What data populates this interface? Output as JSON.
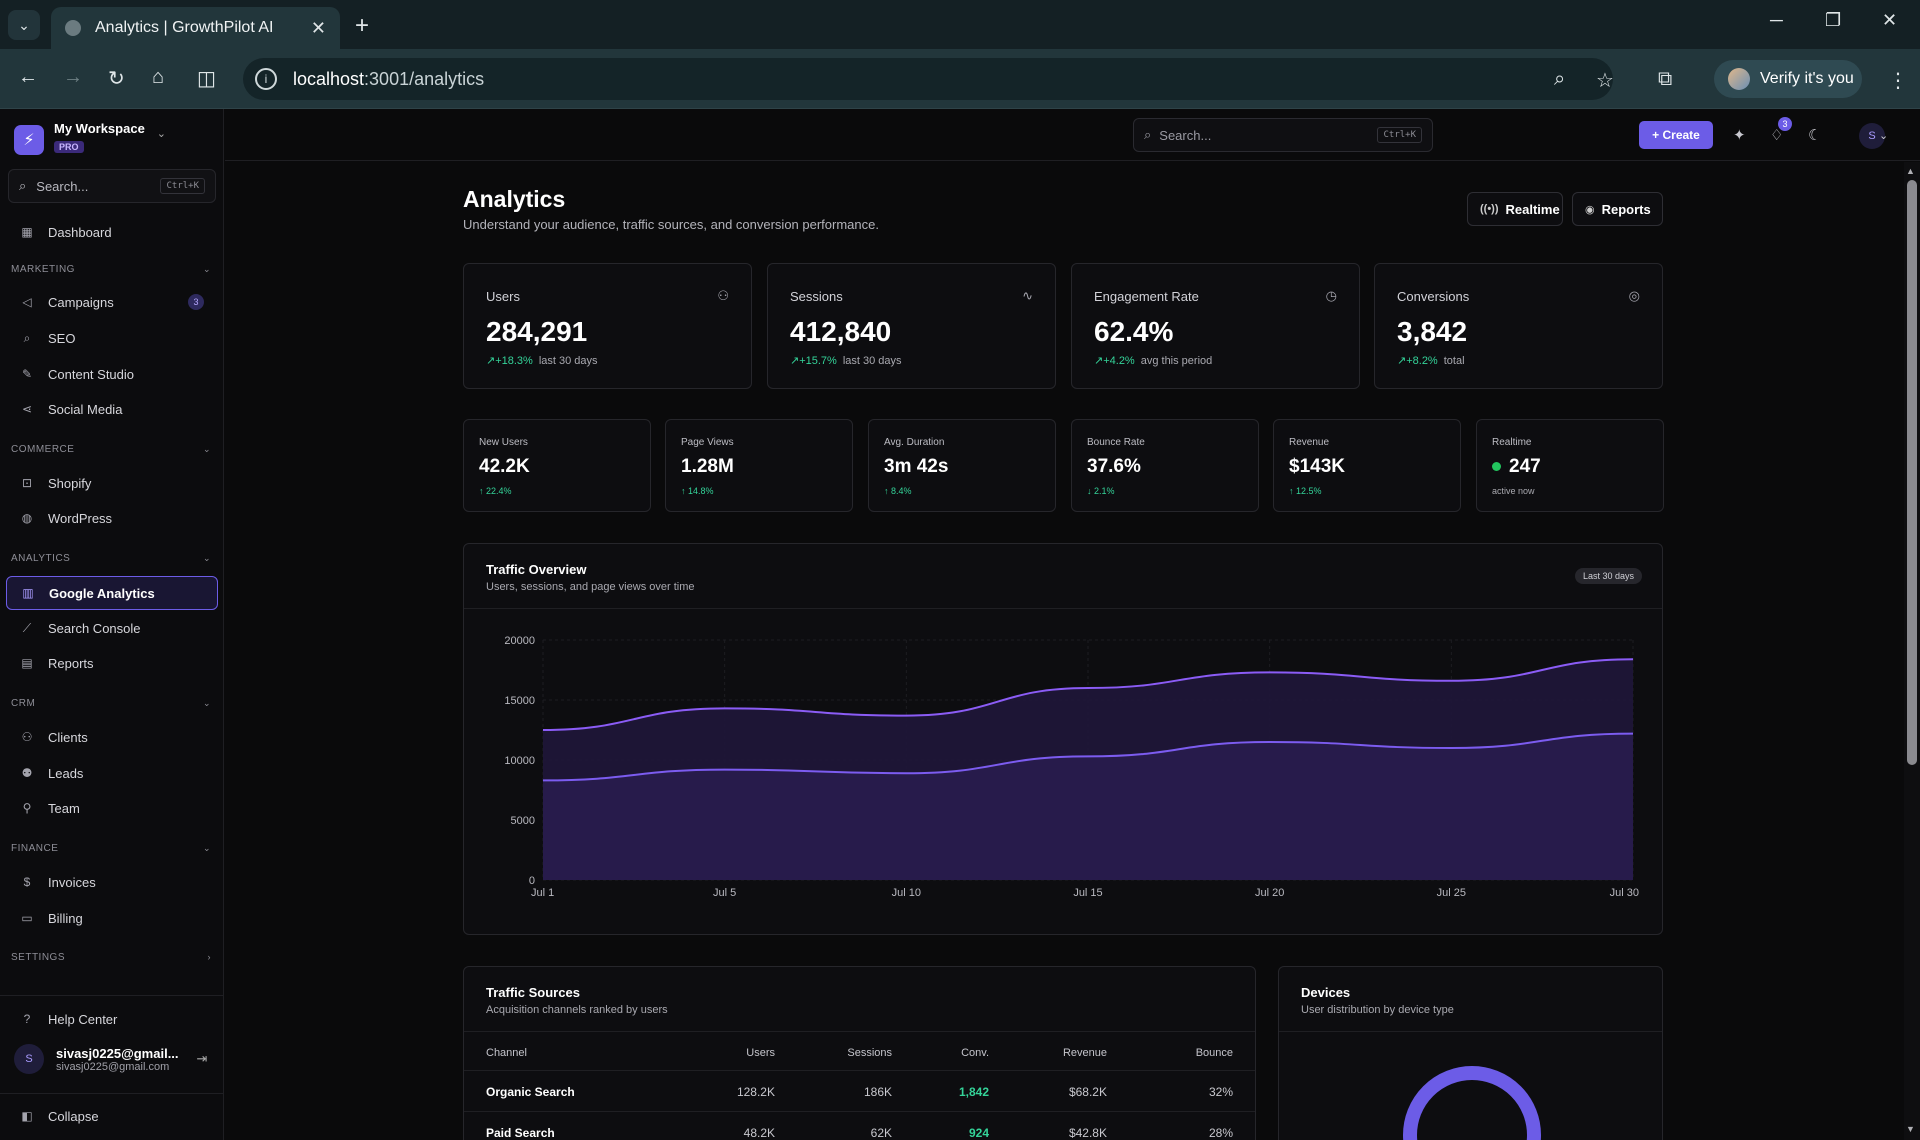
{
  "browser": {
    "tab_title": "Analytics | GrowthPilot AI",
    "url_host": "localhost",
    "url_path": ":3001/analytics",
    "verify_label": "Verify it's you"
  },
  "sidebar": {
    "workspace_name": "My Workspace",
    "workspace_badge": "PRO",
    "search_placeholder": "Search...",
    "search_shortcut": "Ctrl+K",
    "dashboard": "Dashboard",
    "sections": {
      "marketing": "MARKETING",
      "commerce": "COMMERCE",
      "analytics": "ANALYTICS",
      "crm": "CRM",
      "finance": "FINANCE",
      "settings": "SETTINGS"
    },
    "items": {
      "campaigns": "Campaigns",
      "campaigns_badge": "3",
      "seo": "SEO",
      "content_studio": "Content Studio",
      "social_media": "Social Media",
      "shopify": "Shopify",
      "wordpress": "WordPress",
      "google_analytics": "Google Analytics",
      "search_console": "Search Console",
      "reports": "Reports",
      "clients": "Clients",
      "leads": "Leads",
      "team": "Team",
      "invoices": "Invoices",
      "billing": "Billing",
      "help_center": "Help Center",
      "collapse": "Collapse"
    },
    "user": {
      "initial": "S",
      "name": "sivasj0225@gmail...",
      "email": "sivasj0225@gmail.com"
    }
  },
  "topbar": {
    "search_placeholder": "Search...",
    "search_shortcut": "Ctrl+K",
    "create_label": "+ Create",
    "notif_count": "3",
    "avatar_initial": "S"
  },
  "page": {
    "title": "Analytics",
    "subtitle": "Understand your audience, traffic sources, and conversion performance.",
    "realtime_btn": "Realtime",
    "reports_btn": "Reports"
  },
  "kpis": [
    {
      "label": "Users",
      "value": "284,291",
      "delta": "+18.3%",
      "note": "last 30 days",
      "icon": "users-icon"
    },
    {
      "label": "Sessions",
      "value": "412,840",
      "delta": "+15.7%",
      "note": "last 30 days",
      "icon": "activity-icon"
    },
    {
      "label": "Engagement Rate",
      "value": "62.4%",
      "delta": "+4.2%",
      "note": "avg this period",
      "icon": "clock-icon"
    },
    {
      "label": "Conversions",
      "value": "3,842",
      "delta": "+8.2%",
      "note": "total",
      "icon": "target-icon"
    }
  ],
  "mini_stats": [
    {
      "label": "New Users",
      "value": "42.2K",
      "delta": "↑ 22.4%"
    },
    {
      "label": "Page Views",
      "value": "1.28M",
      "delta": "↑ 14.8%"
    },
    {
      "label": "Avg. Duration",
      "value": "3m 42s",
      "delta": "↑ 8.4%"
    },
    {
      "label": "Bounce Rate",
      "value": "37.6%",
      "delta": "↓ 2.1%"
    },
    {
      "label": "Revenue",
      "value": "$143K",
      "delta": "↑ 12.5%"
    },
    {
      "label": "Realtime",
      "value": "247",
      "note": "active now"
    }
  ],
  "traffic_chart": {
    "title": "Traffic Overview",
    "subtitle": "Users, sessions, and page views over time",
    "range_label": "Last 30 days"
  },
  "chart_data": {
    "type": "area",
    "title": "Traffic Overview",
    "x": [
      "Jul 1",
      "Jul 5",
      "Jul 10",
      "Jul 15",
      "Jul 20",
      "Jul 25",
      "Jul 30"
    ],
    "yticks": [
      0,
      5000,
      10000,
      15000,
      20000
    ],
    "ylim": [
      0,
      20000
    ],
    "grid": true,
    "series": [
      {
        "values": [
          12500,
          14300,
          13700,
          16000,
          17300,
          16600,
          18400
        ],
        "color": "#8b5cf6"
      },
      {
        "values": [
          8300,
          9200,
          8900,
          10300,
          11500,
          11000,
          12200
        ],
        "color": "#7c5cf0"
      }
    ]
  },
  "traffic_sources": {
    "title": "Traffic Sources",
    "subtitle": "Acquisition channels ranked by users",
    "columns": [
      "Channel",
      "Users",
      "Sessions",
      "Conv.",
      "Revenue",
      "Bounce"
    ],
    "rows": [
      {
        "channel": "Organic Search",
        "users": "128.2K",
        "sessions": "186K",
        "conv": "1,842",
        "revenue": "$68.2K",
        "bounce": "32%"
      },
      {
        "channel": "Paid Search",
        "users": "48.2K",
        "sessions": "62K",
        "conv": "924",
        "revenue": "$42.8K",
        "bounce": "28%"
      }
    ]
  },
  "devices": {
    "title": "Devices",
    "subtitle": "User distribution by device type"
  },
  "colors": {
    "accent": "#6c5ce7",
    "positive": "#34d399",
    "live": "#22c55e"
  }
}
